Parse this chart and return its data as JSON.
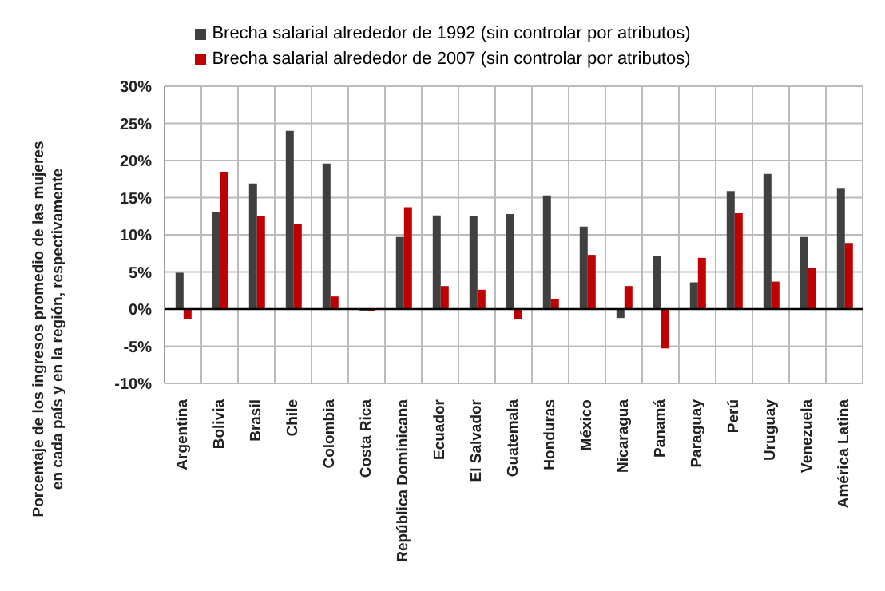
{
  "chart_data": {
    "type": "bar",
    "ylabel": "Porcentaje de los ingresos promedio de las mujeres en cada país y en la región, respectivamente",
    "categories": [
      "Argentina",
      "Bolivia",
      "Brasil",
      "Chile",
      "Colombia",
      "Costa Rica",
      "República Dominicana",
      "Ecuador",
      "El Salvador",
      "Guatemala",
      "Honduras",
      "México",
      "Nicaragua",
      "Panamá",
      "Paraguay",
      "Perú",
      "Uruguay",
      "Venezuela",
      "América Latina"
    ],
    "series": [
      {
        "name": "Brecha salarial alrededor de 1992 (sin controlar por atributos)",
        "color": "#404040",
        "values": [
          4.9,
          13.1,
          16.9,
          24.0,
          19.6,
          -0.2,
          9.7,
          12.6,
          12.5,
          12.8,
          15.3,
          11.1,
          -1.2,
          7.2,
          3.6,
          15.9,
          18.2,
          9.7,
          16.2
        ]
      },
      {
        "name": "Brecha salarial alrededor de 2007 (sin controlar por atributos)",
        "color": "#c00000",
        "values": [
          -1.4,
          18.5,
          12.5,
          11.4,
          1.7,
          -0.3,
          13.7,
          3.1,
          2.6,
          -1.4,
          1.3,
          7.3,
          3.1,
          -5.3,
          6.9,
          12.9,
          3.7,
          5.5,
          8.9
        ]
      }
    ],
    "ylim": [
      -10,
      30
    ],
    "yticks": [
      {
        "value": -10,
        "label": "-10%"
      },
      {
        "value": -5,
        "label": "-5%"
      },
      {
        "value": 0,
        "label": "0%"
      },
      {
        "value": 5,
        "label": "5%"
      },
      {
        "value": 10,
        "label": "10%"
      },
      {
        "value": 15,
        "label": "15%"
      },
      {
        "value": 20,
        "label": "20%"
      },
      {
        "value": 25,
        "label": "25%"
      },
      {
        "value": 30,
        "label": "30%"
      }
    ],
    "grid": true,
    "legend": "top"
  }
}
